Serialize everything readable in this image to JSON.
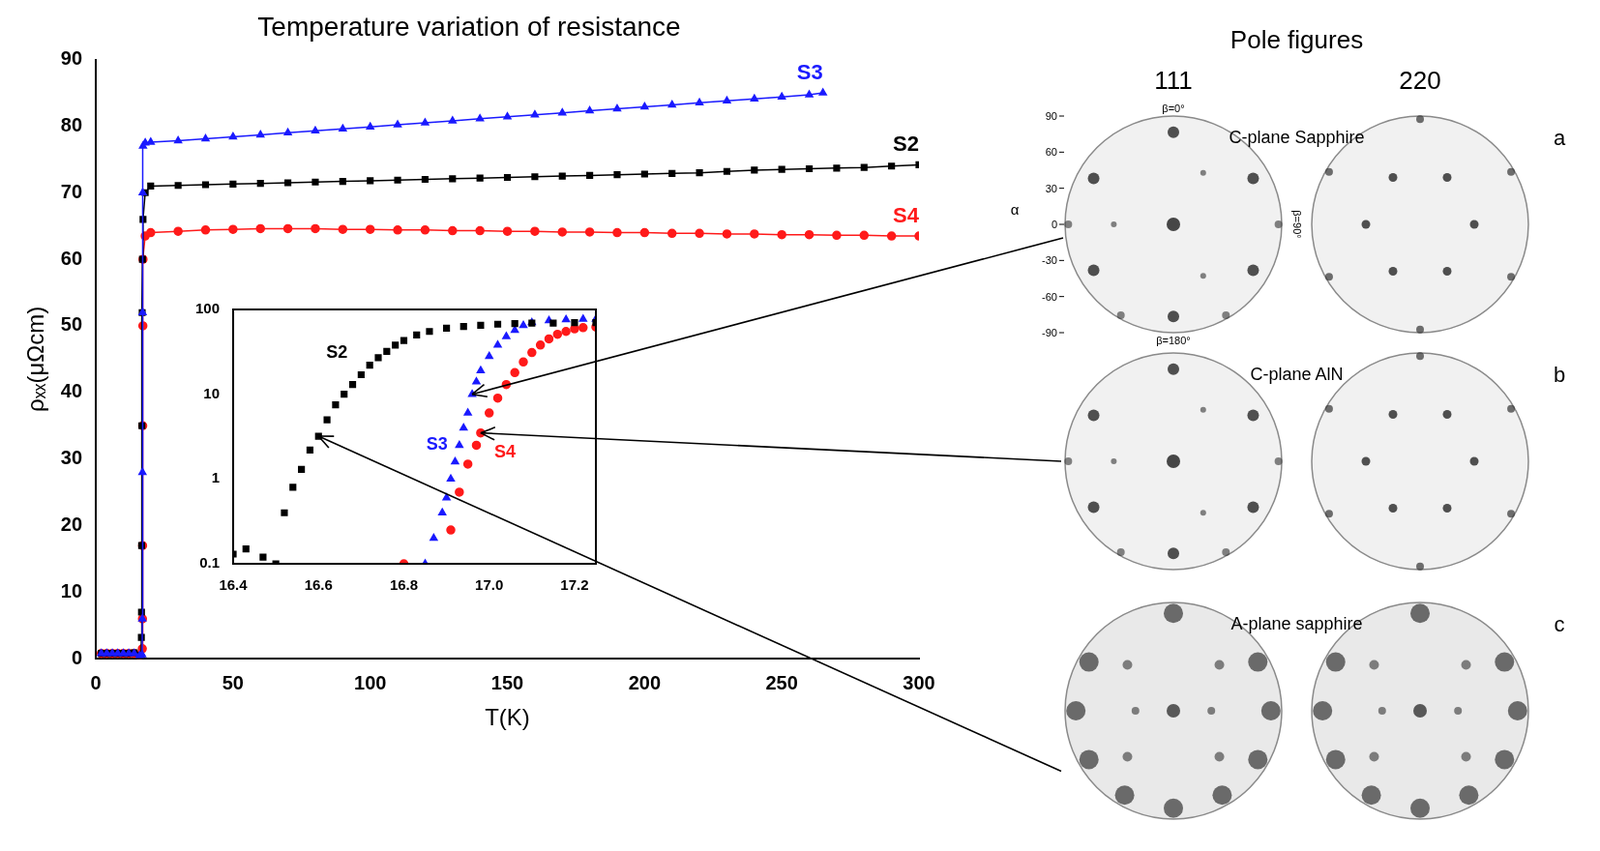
{
  "chart_data": [
    {
      "type": "line",
      "title": "Temperature variation of resistance",
      "x_label": "T(K)",
      "y_label": "ρₓₓ(μΩcm)",
      "xlim": [
        0,
        300
      ],
      "xticks": [
        0,
        50,
        100,
        150,
        200,
        250,
        300
      ],
      "ylim": [
        0,
        90
      ],
      "yticks": [
        0,
        10,
        20,
        30,
        40,
        50,
        60,
        70,
        80,
        90
      ],
      "grid": false,
      "series": [
        {
          "name": "S3",
          "color": "#1a1aff",
          "marker": "triangle",
          "x": [
            2,
            4,
            6,
            8,
            10,
            12,
            14,
            16,
            16.9,
            16.95,
            17.0,
            17.05,
            17.1,
            17.2,
            18,
            20,
            30,
            40,
            50,
            60,
            70,
            80,
            90,
            100,
            110,
            120,
            130,
            140,
            150,
            160,
            170,
            180,
            190,
            200,
            210,
            220,
            230,
            240,
            250,
            260,
            265
          ],
          "values": [
            0.8,
            0.8,
            0.8,
            0.8,
            0.8,
            0.8,
            0.8,
            0.5,
            0.6,
            6,
            28,
            52,
            70,
            77,
            77.5,
            77.6,
            77.8,
            78.1,
            78.4,
            78.7,
            79,
            79.3,
            79.6,
            79.9,
            80.2,
            80.5,
            80.8,
            81.1,
            81.4,
            81.7,
            82,
            82.3,
            82.6,
            82.9,
            83.2,
            83.5,
            83.8,
            84.1,
            84.4,
            84.7,
            85
          ]
        },
        {
          "name": "S2",
          "color": "#000000",
          "marker": "square",
          "x": [
            2,
            4,
            6,
            8,
            10,
            12,
            14,
            16,
            16.5,
            16.6,
            16.65,
            16.7,
            16.8,
            16.9,
            17.0,
            17.2,
            18,
            20,
            30,
            40,
            50,
            60,
            70,
            80,
            90,
            100,
            110,
            120,
            130,
            140,
            150,
            160,
            170,
            180,
            190,
            200,
            210,
            220,
            230,
            240,
            250,
            260,
            270,
            280,
            290,
            300
          ],
          "values": [
            0.8,
            0.8,
            0.8,
            0.8,
            0.8,
            0.8,
            0.9,
            0.5,
            0.1,
            3.2,
            7,
            17,
            35,
            52,
            60,
            66,
            70,
            71,
            71.1,
            71.2,
            71.3,
            71.4,
            71.5,
            71.6,
            71.7,
            71.8,
            71.9,
            72,
            72.1,
            72.2,
            72.3,
            72.4,
            72.5,
            72.6,
            72.7,
            72.8,
            72.9,
            73,
            73.2,
            73.4,
            73.5,
            73.6,
            73.7,
            73.8,
            74,
            74.2
          ]
        },
        {
          "name": "S4",
          "color": "#ff1a1a",
          "marker": "circle",
          "x": [
            2,
            4,
            6,
            8,
            10,
            12,
            14,
            16,
            16.95,
            17.0,
            17.05,
            17.1,
            17.15,
            17.2,
            18,
            20,
            30,
            40,
            50,
            60,
            70,
            80,
            90,
            100,
            110,
            120,
            130,
            140,
            150,
            160,
            170,
            180,
            190,
            200,
            210,
            220,
            230,
            240,
            250,
            260,
            270,
            280,
            290,
            300
          ],
          "values": [
            0.8,
            0.8,
            0.8,
            0.8,
            0.8,
            0.8,
            0.8,
            0.5,
            1.5,
            6,
            17,
            35,
            50,
            60,
            63.5,
            64,
            64.2,
            64.4,
            64.5,
            64.6,
            64.6,
            64.6,
            64.5,
            64.5,
            64.4,
            64.4,
            64.3,
            64.3,
            64.2,
            64.2,
            64.1,
            64.1,
            64,
            64,
            63.9,
            63.9,
            63.8,
            63.8,
            63.7,
            63.7,
            63.6,
            63.6,
            63.5,
            63.5
          ]
        }
      ]
    },
    {
      "type": "scatter",
      "log": "y",
      "xlim": [
        16.4,
        17.25
      ],
      "xticks": [
        16.4,
        16.6,
        16.8,
        {
          "value": 17.0,
          "label": "17.0"
        },
        17.2
      ],
      "ylim": [
        0.1,
        100
      ],
      "yticks": [
        0.1,
        1,
        10,
        100
      ],
      "grid": false,
      "series": [
        {
          "name": "S2",
          "color": "#000000",
          "marker": "square",
          "x": [
            16.4,
            16.43,
            16.47,
            16.5,
            16.52,
            16.54,
            16.56,
            16.58,
            16.6,
            16.62,
            16.64,
            16.66,
            16.68,
            16.7,
            16.72,
            16.74,
            16.76,
            16.78,
            16.8,
            16.83,
            16.86,
            16.9,
            16.94,
            16.98,
            17.02,
            17.06,
            17.1,
            17.15,
            17.2,
            17.25
          ],
          "values": [
            0.13,
            0.15,
            0.12,
            0.1,
            0.4,
            0.8,
            1.3,
            2.2,
            3.2,
            5,
            7.5,
            10,
            13,
            17,
            22,
            27,
            32,
            38,
            43,
            50,
            55,
            60,
            63,
            65,
            67,
            68,
            69,
            69,
            70,
            70
          ]
        },
        {
          "name": "S3",
          "color": "#1a1aff",
          "marker": "triangle",
          "x": [
            16.85,
            16.87,
            16.89,
            16.9,
            16.91,
            16.92,
            16.93,
            16.94,
            16.95,
            16.96,
            16.97,
            16.98,
            17.0,
            17.02,
            17.04,
            17.06,
            17.08,
            17.1,
            17.14,
            17.18,
            17.22,
            17.25
          ],
          "values": [
            0.1,
            0.2,
            0.4,
            0.6,
            1,
            1.6,
            2.5,
            4,
            6,
            10,
            14,
            19,
            28,
            38,
            48,
            57,
            65,
            70,
            74,
            76,
            77,
            77
          ]
        },
        {
          "name": "S4",
          "color": "#ff1a1a",
          "marker": "circle",
          "x": [
            16.8,
            16.91,
            16.93,
            16.95,
            16.97,
            16.98,
            17.0,
            17.02,
            17.04,
            17.06,
            17.08,
            17.1,
            17.12,
            17.14,
            17.16,
            17.18,
            17.2,
            17.22,
            17.25
          ],
          "values": [
            0.1,
            0.25,
            0.7,
            1.5,
            2.5,
            3.5,
            6,
            9,
            13,
            18,
            24,
            31,
            38,
            45,
            51,
            55,
            59,
            61,
            62
          ]
        }
      ]
    }
  ],
  "pole_figures": {
    "title": "Pole figures",
    "columns": [
      "111",
      "220"
    ],
    "rows": [
      {
        "letter": "a",
        "label": "C-plane Sapphire"
      },
      {
        "letter": "b",
        "label": "C-plane AlN"
      },
      {
        "letter": "c",
        "label": "A-plane sapphire"
      }
    ],
    "alpha_axis": {
      "label": "α",
      "ticks": [
        90,
        60,
        30,
        0,
        -30,
        -60,
        -90
      ]
    },
    "beta_labels": {
      "top": "β=0°",
      "right": "β=90°",
      "bottom": "β=180°"
    }
  }
}
